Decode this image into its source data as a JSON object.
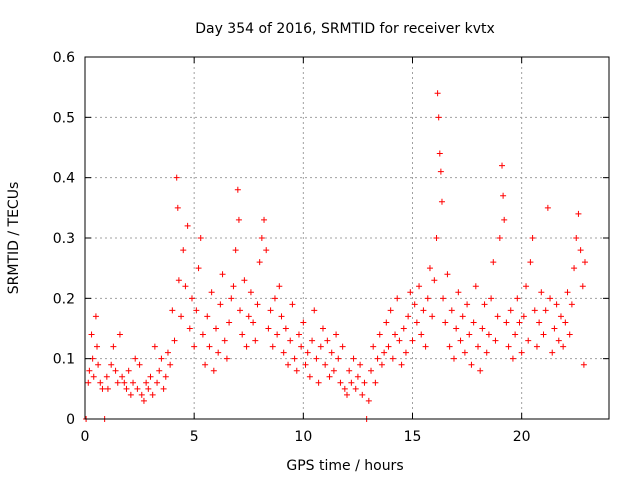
{
  "chart_data": {
    "type": "scatter",
    "title": "Day 354 of 2016, SRMTID for receiver kvtx",
    "xlabel": "GPS time / hours",
    "ylabel": "SRMTID / TECUs",
    "xlim": [
      0,
      24
    ],
    "ylim": [
      0,
      0.6
    ],
    "xticks": [
      0,
      5,
      10,
      15,
      20
    ],
    "xtick_labels": [
      "0",
      "5",
      "10",
      "15",
      "20"
    ],
    "yticks": [
      0,
      0.1,
      0.2,
      0.3,
      0.4,
      0.5,
      0.6
    ],
    "ytick_labels": [
      "0",
      "0.1",
      "0.2",
      "0.3",
      "0.4",
      "0.5",
      "0.6"
    ],
    "grid": true,
    "marker": "plus",
    "series": [
      {
        "name": "SRMTID",
        "color": "#ff0000",
        "points": [
          [
            0.05,
            0.0
          ],
          [
            0.15,
            0.06
          ],
          [
            0.2,
            0.08
          ],
          [
            0.3,
            0.14
          ],
          [
            0.35,
            0.1
          ],
          [
            0.4,
            0.07
          ],
          [
            0.5,
            0.17
          ],
          [
            0.55,
            0.12
          ],
          [
            0.6,
            0.09
          ],
          [
            0.7,
            0.06
          ],
          [
            0.8,
            0.05
          ],
          [
            0.9,
            0.0
          ],
          [
            1.0,
            0.07
          ],
          [
            1.05,
            0.05
          ],
          [
            1.2,
            0.09
          ],
          [
            1.3,
            0.12
          ],
          [
            1.4,
            0.08
          ],
          [
            1.5,
            0.06
          ],
          [
            1.6,
            0.14
          ],
          [
            1.7,
            0.07
          ],
          [
            1.8,
            0.06
          ],
          [
            1.9,
            0.05
          ],
          [
            2.0,
            0.08
          ],
          [
            2.1,
            0.04
          ],
          [
            2.2,
            0.06
          ],
          [
            2.3,
            0.1
          ],
          [
            2.4,
            0.05
          ],
          [
            2.5,
            0.09
          ],
          [
            2.6,
            0.04
          ],
          [
            2.7,
            0.03
          ],
          [
            2.8,
            0.06
          ],
          [
            2.9,
            0.05
          ],
          [
            3.0,
            0.07
          ],
          [
            3.1,
            0.04
          ],
          [
            3.2,
            0.12
          ],
          [
            3.3,
            0.06
          ],
          [
            3.4,
            0.08
          ],
          [
            3.5,
            0.1
          ],
          [
            3.6,
            0.05
          ],
          [
            3.7,
            0.07
          ],
          [
            3.8,
            0.11
          ],
          [
            3.9,
            0.09
          ],
          [
            4.0,
            0.18
          ],
          [
            4.1,
            0.13
          ],
          [
            4.2,
            0.4
          ],
          [
            4.25,
            0.35
          ],
          [
            4.3,
            0.23
          ],
          [
            4.4,
            0.17
          ],
          [
            4.5,
            0.28
          ],
          [
            4.6,
            0.22
          ],
          [
            4.7,
            0.32
          ],
          [
            4.8,
            0.15
          ],
          [
            4.9,
            0.2
          ],
          [
            5.0,
            0.12
          ],
          [
            5.1,
            0.18
          ],
          [
            5.2,
            0.25
          ],
          [
            5.3,
            0.3
          ],
          [
            5.4,
            0.14
          ],
          [
            5.5,
            0.09
          ],
          [
            5.6,
            0.17
          ],
          [
            5.7,
            0.12
          ],
          [
            5.8,
            0.21
          ],
          [
            5.9,
            0.08
          ],
          [
            6.0,
            0.15
          ],
          [
            6.1,
            0.11
          ],
          [
            6.2,
            0.19
          ],
          [
            6.3,
            0.24
          ],
          [
            6.4,
            0.13
          ],
          [
            6.5,
            0.1
          ],
          [
            6.6,
            0.16
          ],
          [
            6.7,
            0.2
          ],
          [
            6.8,
            0.22
          ],
          [
            6.9,
            0.28
          ],
          [
            7.0,
            0.38
          ],
          [
            7.05,
            0.33
          ],
          [
            7.1,
            0.18
          ],
          [
            7.2,
            0.14
          ],
          [
            7.3,
            0.23
          ],
          [
            7.4,
            0.12
          ],
          [
            7.5,
            0.17
          ],
          [
            7.6,
            0.21
          ],
          [
            7.7,
            0.16
          ],
          [
            7.8,
            0.13
          ],
          [
            7.9,
            0.19
          ],
          [
            8.0,
            0.26
          ],
          [
            8.1,
            0.3
          ],
          [
            8.2,
            0.33
          ],
          [
            8.3,
            0.28
          ],
          [
            8.4,
            0.15
          ],
          [
            8.5,
            0.18
          ],
          [
            8.6,
            0.12
          ],
          [
            8.7,
            0.2
          ],
          [
            8.8,
            0.14
          ],
          [
            8.9,
            0.22
          ],
          [
            9.0,
            0.17
          ],
          [
            9.1,
            0.11
          ],
          [
            9.2,
            0.15
          ],
          [
            9.3,
            0.09
          ],
          [
            9.4,
            0.13
          ],
          [
            9.5,
            0.19
          ],
          [
            9.6,
            0.1
          ],
          [
            9.7,
            0.08
          ],
          [
            9.8,
            0.14
          ],
          [
            9.9,
            0.12
          ],
          [
            10.0,
            0.16
          ],
          [
            10.1,
            0.09
          ],
          [
            10.2,
            0.11
          ],
          [
            10.3,
            0.07
          ],
          [
            10.4,
            0.13
          ],
          [
            10.5,
            0.18
          ],
          [
            10.6,
            0.1
          ],
          [
            10.7,
            0.06
          ],
          [
            10.8,
            0.12
          ],
          [
            10.9,
            0.15
          ],
          [
            11.0,
            0.09
          ],
          [
            11.1,
            0.13
          ],
          [
            11.2,
            0.07
          ],
          [
            11.3,
            0.11
          ],
          [
            11.4,
            0.08
          ],
          [
            11.5,
            0.14
          ],
          [
            11.6,
            0.1
          ],
          [
            11.7,
            0.06
          ],
          [
            11.8,
            0.12
          ],
          [
            11.9,
            0.05
          ],
          [
            12.0,
            0.04
          ],
          [
            12.1,
            0.08
          ],
          [
            12.2,
            0.06
          ],
          [
            12.3,
            0.1
          ],
          [
            12.4,
            0.05
          ],
          [
            12.5,
            0.07
          ],
          [
            12.6,
            0.09
          ],
          [
            12.7,
            0.04
          ],
          [
            12.8,
            0.06
          ],
          [
            12.9,
            0.0
          ],
          [
            13.0,
            0.03
          ],
          [
            13.1,
            0.08
          ],
          [
            13.2,
            0.12
          ],
          [
            13.3,
            0.06
          ],
          [
            13.4,
            0.1
          ],
          [
            13.5,
            0.14
          ],
          [
            13.6,
            0.09
          ],
          [
            13.7,
            0.11
          ],
          [
            13.8,
            0.16
          ],
          [
            13.9,
            0.12
          ],
          [
            14.0,
            0.18
          ],
          [
            14.1,
            0.1
          ],
          [
            14.2,
            0.14
          ],
          [
            14.3,
            0.2
          ],
          [
            14.4,
            0.13
          ],
          [
            14.5,
            0.09
          ],
          [
            14.6,
            0.15
          ],
          [
            14.7,
            0.11
          ],
          [
            14.8,
            0.17
          ],
          [
            14.9,
            0.21
          ],
          [
            15.0,
            0.13
          ],
          [
            15.1,
            0.19
          ],
          [
            15.2,
            0.16
          ],
          [
            15.3,
            0.22
          ],
          [
            15.4,
            0.14
          ],
          [
            15.5,
            0.18
          ],
          [
            15.6,
            0.12
          ],
          [
            15.7,
            0.2
          ],
          [
            15.8,
            0.25
          ],
          [
            15.9,
            0.17
          ],
          [
            16.0,
            0.23
          ],
          [
            16.1,
            0.3
          ],
          [
            16.15,
            0.54
          ],
          [
            16.2,
            0.5
          ],
          [
            16.25,
            0.44
          ],
          [
            16.3,
            0.41
          ],
          [
            16.35,
            0.36
          ],
          [
            16.4,
            0.2
          ],
          [
            16.5,
            0.16
          ],
          [
            16.6,
            0.24
          ],
          [
            16.7,
            0.12
          ],
          [
            16.8,
            0.18
          ],
          [
            16.9,
            0.1
          ],
          [
            17.0,
            0.15
          ],
          [
            17.1,
            0.21
          ],
          [
            17.2,
            0.13
          ],
          [
            17.3,
            0.17
          ],
          [
            17.4,
            0.11
          ],
          [
            17.5,
            0.19
          ],
          [
            17.6,
            0.14
          ],
          [
            17.7,
            0.09
          ],
          [
            17.8,
            0.16
          ],
          [
            17.9,
            0.22
          ],
          [
            18.0,
            0.12
          ],
          [
            18.1,
            0.08
          ],
          [
            18.2,
            0.15
          ],
          [
            18.3,
            0.19
          ],
          [
            18.4,
            0.11
          ],
          [
            18.5,
            0.14
          ],
          [
            18.6,
            0.2
          ],
          [
            18.7,
            0.26
          ],
          [
            18.8,
            0.13
          ],
          [
            18.9,
            0.17
          ],
          [
            19.0,
            0.3
          ],
          [
            19.1,
            0.42
          ],
          [
            19.15,
            0.37
          ],
          [
            19.2,
            0.33
          ],
          [
            19.3,
            0.16
          ],
          [
            19.4,
            0.12
          ],
          [
            19.5,
            0.18
          ],
          [
            19.6,
            0.1
          ],
          [
            19.7,
            0.14
          ],
          [
            19.8,
            0.2
          ],
          [
            19.9,
            0.16
          ],
          [
            20.0,
            0.11
          ],
          [
            20.1,
            0.17
          ],
          [
            20.2,
            0.22
          ],
          [
            20.3,
            0.13
          ],
          [
            20.4,
            0.26
          ],
          [
            20.5,
            0.3
          ],
          [
            20.6,
            0.18
          ],
          [
            20.7,
            0.12
          ],
          [
            20.8,
            0.16
          ],
          [
            20.9,
            0.21
          ],
          [
            21.0,
            0.14
          ],
          [
            21.1,
            0.18
          ],
          [
            21.2,
            0.35
          ],
          [
            21.3,
            0.2
          ],
          [
            21.4,
            0.11
          ],
          [
            21.5,
            0.15
          ],
          [
            21.6,
            0.19
          ],
          [
            21.7,
            0.13
          ],
          [
            21.8,
            0.17
          ],
          [
            21.9,
            0.12
          ],
          [
            22.0,
            0.16
          ],
          [
            22.1,
            0.21
          ],
          [
            22.2,
            0.14
          ],
          [
            22.3,
            0.19
          ],
          [
            22.4,
            0.25
          ],
          [
            22.5,
            0.3
          ],
          [
            22.6,
            0.34
          ],
          [
            22.7,
            0.28
          ],
          [
            22.8,
            0.22
          ],
          [
            22.85,
            0.09
          ],
          [
            22.9,
            0.26
          ]
        ]
      }
    ]
  }
}
